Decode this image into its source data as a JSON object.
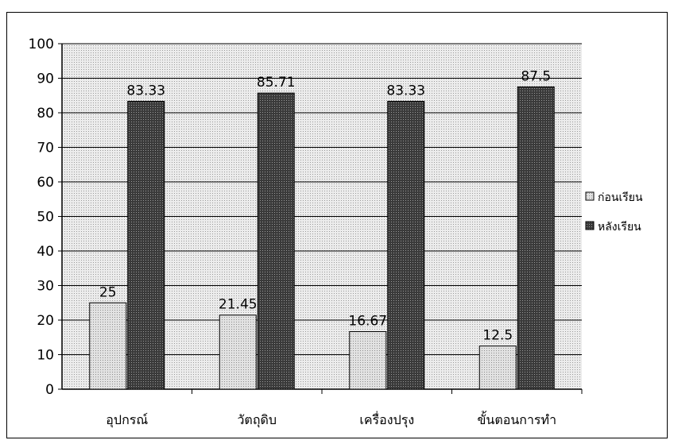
{
  "chart_data": {
    "type": "bar",
    "categories": [
      "อุปกรณ์",
      "วัตถุดิบ",
      "เครื่องปรุง",
      "ขั้นตอนการทำ"
    ],
    "series": [
      {
        "name": "ก่อนเรียน",
        "values": [
          25,
          21.45,
          16.67,
          12.5
        ],
        "labels": [
          "25",
          "21.45",
          "16.67",
          "12.5"
        ],
        "color": "#d4d4d4"
      },
      {
        "name": "หลังเรียน",
        "values": [
          83.33,
          85.71,
          83.33,
          87.5
        ],
        "labels": [
          "83.33",
          "85.71",
          "83.33",
          "87.5"
        ],
        "color": "#4a4a4a"
      }
    ],
    "ylim": [
      0,
      100
    ],
    "yticks": [
      "0",
      "10",
      "20",
      "30",
      "40",
      "50",
      "60",
      "70",
      "80",
      "90",
      "100"
    ],
    "grid": true,
    "legend_position": "right"
  }
}
